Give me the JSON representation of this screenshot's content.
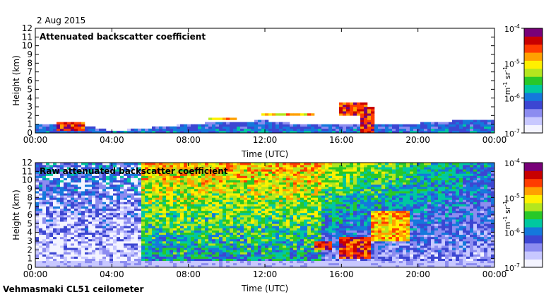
{
  "date_label": "2 Aug 2015",
  "footer_label": "Vehmasmaki CL51 ceilometer",
  "colors": {
    "background": "#ffffff",
    "noise_low": "#ebebf6",
    "noise_mid": "#9aa0e8",
    "noise_high": "#3c46c8",
    "colormap": [
      "#f4f4ff",
      "#c8c8ff",
      "#8c8cf0",
      "#3c46d2",
      "#1478dc",
      "#00c8a0",
      "#28c828",
      "#b4e61e",
      "#fff000",
      "#ffa000",
      "#ff3c00",
      "#c80000",
      "#780078"
    ]
  },
  "chart_data": [
    {
      "type": "heatmap",
      "title": "Attenuated backscatter coefficient",
      "xlabel": "Time (UTC)",
      "ylabel": "Height (km)",
      "x_ticks": [
        "00:00",
        "04:00",
        "08:00",
        "12:00",
        "16:00",
        "20:00",
        "00:00"
      ],
      "y_ticks": [
        "0",
        "1",
        "2",
        "3",
        "4",
        "5",
        "6",
        "7",
        "8",
        "9",
        "10",
        "11",
        "12"
      ],
      "xlim_hours": [
        0,
        24
      ],
      "ylim_km": [
        0,
        12
      ],
      "colorbar": {
        "ticks": [
          "10",
          "10",
          "10",
          "10"
        ],
        "exponents": [
          "-4",
          "-5",
          "-6",
          "-7"
        ],
        "label_base": "m",
        "label_exp1": "-1",
        "label_mid": " sr",
        "label_exp2": "-1",
        "range": [
          1e-07,
          0.0001
        ],
        "scale": "log"
      },
      "features": {
        "boundary_layer_top_km": [
          [
            0,
            0.9
          ],
          [
            2,
            1.1
          ],
          [
            4,
            0.2
          ],
          [
            5,
            0.4
          ],
          [
            6,
            0.6
          ],
          [
            8,
            1.0
          ],
          [
            10,
            1.3
          ],
          [
            12,
            1.4
          ],
          [
            14,
            1.0
          ],
          [
            16,
            0.9
          ],
          [
            18,
            1.0
          ],
          [
            20,
            1.1
          ],
          [
            22,
            1.4
          ],
          [
            24,
            1.6
          ]
        ],
        "clouds": [
          {
            "t": [
              1.2,
              2.6
            ],
            "h": [
              0.3,
              1.3
            ],
            "level": "high"
          },
          {
            "t": [
              9.0,
              10.5
            ],
            "h": [
              1.4,
              1.7
            ],
            "level": "mid"
          },
          {
            "t": [
              11.8,
              14.5
            ],
            "h": [
              2.0,
              2.3
            ],
            "level": "mid"
          },
          {
            "t": [
              15.8,
              17.3
            ],
            "h": [
              2.0,
              3.6
            ],
            "level": "high"
          },
          {
            "t": [
              17.0,
              17.8
            ],
            "h": [
              0.0,
              3.0
            ],
            "level": "high"
          }
        ]
      }
    },
    {
      "type": "heatmap",
      "title": "Raw attenuated backscatter coefficient",
      "xlabel": "Time (UTC)",
      "ylabel": "Height (km)",
      "x_ticks": [
        "00:00",
        "04:00",
        "08:00",
        "12:00",
        "16:00",
        "20:00",
        "00:00"
      ],
      "y_ticks": [
        "0",
        "1",
        "2",
        "3",
        "4",
        "5",
        "6",
        "7",
        "8",
        "9",
        "10",
        "11",
        "12"
      ],
      "xlim_hours": [
        0,
        24
      ],
      "ylim_km": [
        0,
        12
      ],
      "colorbar": {
        "ticks": [
          "10",
          "10",
          "10",
          "10"
        ],
        "exponents": [
          "-4",
          "-5",
          "-6",
          "-7"
        ],
        "label_base": "m",
        "label_exp1": "-1",
        "label_mid": " sr",
        "label_exp2": "-1",
        "range": [
          1e-07,
          0.0001
        ],
        "scale": "log"
      },
      "features": {
        "noisy_daytime_window_hours": [
          5.5,
          15
        ],
        "clouds": [
          {
            "t": [
              14.5,
              15.5
            ],
            "h": [
              2.0,
              3.0
            ],
            "level": "high"
          },
          {
            "t": [
              15.8,
              17.5
            ],
            "h": [
              1.0,
              3.5
            ],
            "level": "high"
          },
          {
            "t": [
              17.5,
              19.5
            ],
            "h": [
              3.0,
              6.5
            ],
            "level": "mid"
          }
        ]
      }
    }
  ]
}
